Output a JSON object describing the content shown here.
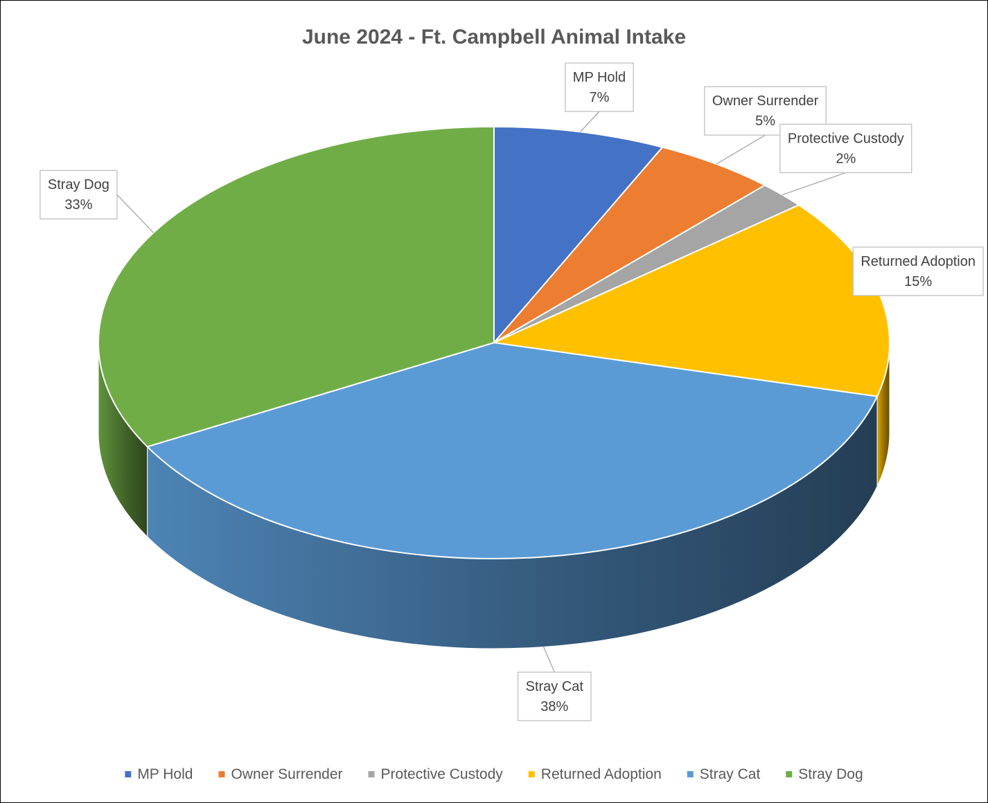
{
  "chart_data": {
    "type": "pie",
    "variant": "3d",
    "title": "June 2024 - Ft. Campbell Animal Intake",
    "legend_position": "bottom",
    "slices": [
      {
        "label": "MP Hold",
        "value": 7,
        "value_text": "7%",
        "color": "#4472C4"
      },
      {
        "label": "Owner Surrender",
        "value": 5,
        "value_text": "5%",
        "color": "#ED7D31"
      },
      {
        "label": "Protective Custody",
        "value": 2,
        "value_text": "2%",
        "color": "#A5A5A5"
      },
      {
        "label": "Returned Adoption",
        "value": 15,
        "value_text": "15%",
        "color": "#FFC000"
      },
      {
        "label": "Stray Cat",
        "value": 38,
        "value_text": "38%",
        "color": "#5B9BD5"
      },
      {
        "label": "Stray Dog",
        "value": 33,
        "value_text": "33%",
        "color": "#70AD47"
      }
    ]
  }
}
